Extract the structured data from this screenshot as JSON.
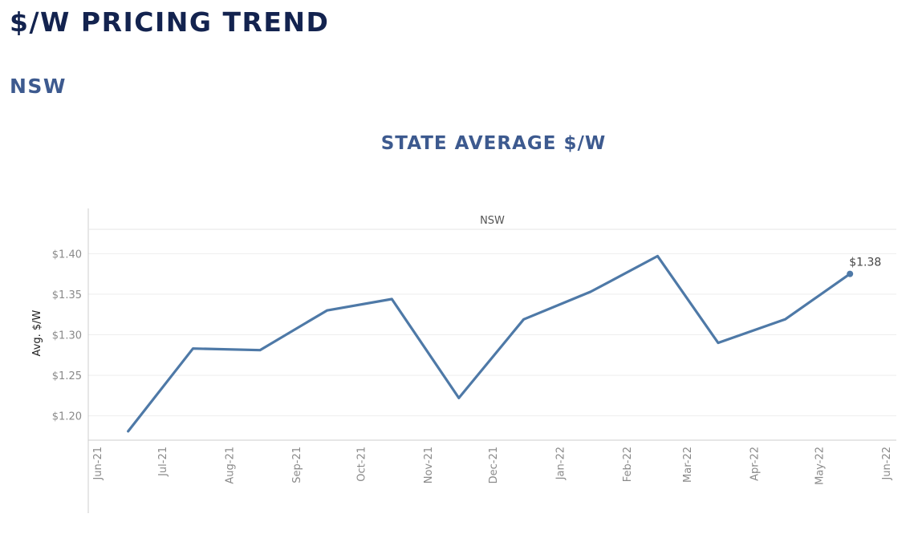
{
  "page": {
    "title": "$/W PRICING TREND",
    "section": "NSW"
  },
  "chart_data": {
    "type": "line",
    "title": "STATE AVERAGE $/W",
    "panel_label": "NSW",
    "ylabel": "Avg. $/W",
    "xlabel": "",
    "ylim": [
      1.17,
      1.43
    ],
    "y_ticks": [
      1.2,
      1.25,
      1.3,
      1.35,
      1.4
    ],
    "y_tick_labels": [
      "$1.20",
      "$1.25",
      "$1.30",
      "$1.35",
      "$1.40"
    ],
    "x_ticks": [
      "2021-06-01",
      "2021-07-01",
      "2021-08-01",
      "2021-09-01",
      "2021-10-01",
      "2021-11-01",
      "2021-12-01",
      "2022-01-01",
      "2022-02-01",
      "2022-03-01",
      "2022-04-01",
      "2022-05-01",
      "2022-06-01"
    ],
    "x_tick_labels": [
      "Jun-21",
      "Jul-21",
      "Aug-21",
      "Sep-21",
      "Oct-21",
      "Nov-21",
      "Dec-21",
      "Jan-22",
      "Feb-22",
      "Mar-22",
      "Apr-22",
      "May-22",
      "Jun-22"
    ],
    "grid": true,
    "line_color": "#4e79a7",
    "series": [
      {
        "x": [
          "2021-06-15",
          "2021-07-15",
          "2021-08-15",
          "2021-09-15",
          "2021-10-15",
          "2021-11-15",
          "2021-12-15",
          "2022-01-15",
          "2022-02-15",
          "2022-03-15",
          "2022-04-15",
          "2022-05-15"
        ],
        "values": [
          1.181,
          1.283,
          1.281,
          1.33,
          1.344,
          1.222,
          1.319,
          1.353,
          1.397,
          1.29,
          1.319,
          1.375
        ]
      }
    ],
    "end_label": "$1.38"
  }
}
